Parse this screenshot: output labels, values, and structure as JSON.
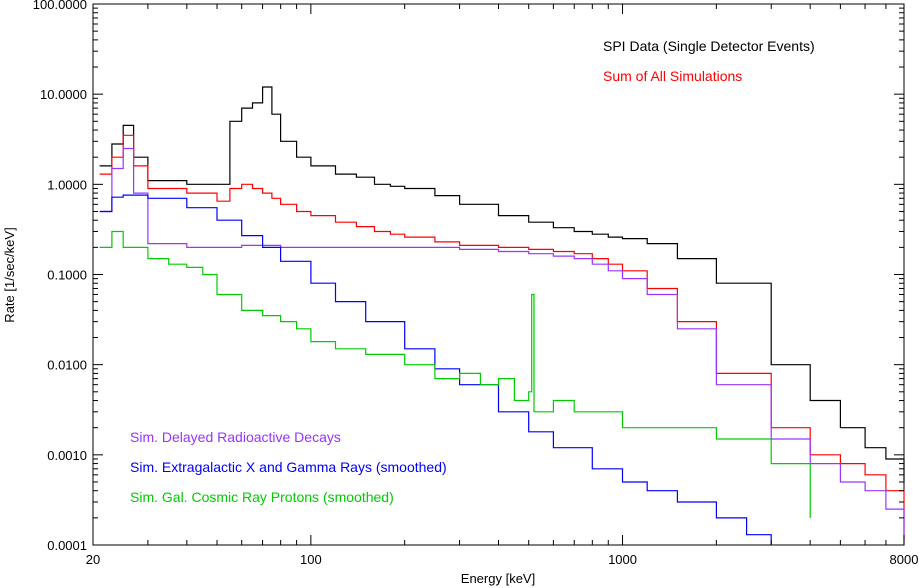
{
  "chart_data": {
    "type": "line",
    "xlabel": "Energy [keV]",
    "ylabel": "Rate [1/sec/keV]",
    "xscale": "log",
    "yscale": "log",
    "xlim": [
      20,
      8000
    ],
    "ylim": [
      0.0001,
      100
    ],
    "grid": false,
    "legend_placement": "top-right and bottom-left",
    "x_ticks": [
      {
        "value": 20,
        "label": "20"
      },
      {
        "value": 100,
        "label": "100"
      },
      {
        "value": 1000,
        "label": "1000"
      },
      {
        "value": 8000,
        "label": "8000"
      }
    ],
    "y_ticks": [
      {
        "value": 0.0001,
        "label": "0.0001"
      },
      {
        "value": 0.001,
        "label": "0.0010"
      },
      {
        "value": 0.01,
        "label": "0.0100"
      },
      {
        "value": 0.1,
        "label": "0.1000"
      },
      {
        "value": 1,
        "label": "1.0000"
      },
      {
        "value": 10,
        "label": "10.0000"
      },
      {
        "value": 100,
        "label": "100.0000"
      }
    ],
    "series": [
      {
        "name": "SPI Data (Single Detector Events)",
        "color": "#000000",
        "x": [
          21,
          23,
          25,
          27,
          30,
          40,
          50,
          55,
          60,
          65,
          70,
          75,
          80,
          90,
          100,
          120,
          140,
          160,
          180,
          200,
          250,
          300,
          400,
          500,
          600,
          700,
          800,
          900,
          1000,
          1200,
          1500,
          2000,
          3000,
          4000,
          5000,
          6000,
          7000,
          8000
        ],
        "y": [
          1.6,
          2.8,
          4.5,
          2.0,
          1.1,
          1.0,
          1.0,
          5.0,
          7.0,
          8.0,
          12.0,
          6.0,
          3.0,
          2.0,
          1.6,
          1.3,
          1.2,
          1.0,
          0.95,
          0.9,
          0.75,
          0.6,
          0.45,
          0.38,
          0.33,
          0.3,
          0.28,
          0.26,
          0.25,
          0.22,
          0.15,
          0.08,
          0.01,
          0.004,
          0.002,
          0.0012,
          0.0009,
          0.0005
        ]
      },
      {
        "name": "Sum of All Simulations",
        "color": "#ff0000",
        "x": [
          21,
          23,
          25,
          27,
          30,
          40,
          50,
          55,
          60,
          65,
          70,
          75,
          80,
          90,
          100,
          120,
          140,
          160,
          180,
          200,
          250,
          300,
          400,
          500,
          600,
          700,
          800,
          900,
          1000,
          1200,
          1500,
          2000,
          3000,
          4000,
          5000,
          6000,
          7000,
          8000
        ],
        "y": [
          1.3,
          2.0,
          3.5,
          1.6,
          0.9,
          0.8,
          0.65,
          0.9,
          1.0,
          0.9,
          0.8,
          0.7,
          0.6,
          0.5,
          0.45,
          0.38,
          0.34,
          0.3,
          0.28,
          0.26,
          0.23,
          0.21,
          0.2,
          0.19,
          0.18,
          0.17,
          0.15,
          0.13,
          0.11,
          0.07,
          0.03,
          0.008,
          0.002,
          0.001,
          0.0008,
          0.0006,
          0.0004,
          0.00012
        ]
      },
      {
        "name": "Sim. Delayed Radioactive Decays",
        "color": "#9933ff",
        "x": [
          21,
          23,
          25,
          27,
          30,
          40,
          50,
          55,
          60,
          65,
          70,
          75,
          80,
          90,
          100,
          120,
          140,
          160,
          180,
          200,
          250,
          300,
          400,
          500,
          600,
          700,
          800,
          900,
          1000,
          1200,
          1500,
          2000,
          3000,
          4000,
          5000,
          6000,
          7000,
          8000
        ],
        "y": [
          0.5,
          1.5,
          2.5,
          0.8,
          0.22,
          0.2,
          0.2,
          0.2,
          0.21,
          0.21,
          0.21,
          0.21,
          0.2,
          0.2,
          0.2,
          0.2,
          0.2,
          0.2,
          0.2,
          0.2,
          0.2,
          0.19,
          0.18,
          0.17,
          0.16,
          0.15,
          0.13,
          0.11,
          0.09,
          0.06,
          0.025,
          0.006,
          0.0015,
          0.0008,
          0.0005,
          0.0004,
          0.00025,
          0.0001
        ]
      },
      {
        "name": "Sim. Extragalactic X and Gamma Rays (smoothed)",
        "color": "#0000ff",
        "x": [
          21,
          23,
          25,
          27,
          30,
          40,
          50,
          60,
          70,
          80,
          100,
          120,
          150,
          200,
          250,
          300,
          400,
          500,
          600,
          800,
          1000,
          1200,
          1500,
          2000,
          2500,
          3000
        ],
        "y": [
          0.5,
          0.72,
          0.76,
          0.76,
          0.7,
          0.55,
          0.4,
          0.27,
          0.2,
          0.14,
          0.08,
          0.05,
          0.03,
          0.015,
          0.009,
          0.006,
          0.003,
          0.0018,
          0.0012,
          0.0007,
          0.0005,
          0.0004,
          0.0003,
          0.0002,
          0.00013,
          0.0001
        ]
      },
      {
        "name": "Sim. Gal. Cosmic Ray Protons (smoothed)",
        "color": "#00cc00",
        "x": [
          21,
          23,
          25,
          27,
          30,
          35,
          40,
          45,
          50,
          60,
          70,
          80,
          90,
          100,
          120,
          150,
          200,
          250,
          300,
          350,
          400,
          450,
          500,
          511,
          520,
          600,
          700,
          800,
          1000,
          1200,
          1500,
          2000,
          3000,
          4000
        ],
        "y": [
          0.2,
          0.3,
          0.2,
          0.2,
          0.15,
          0.13,
          0.12,
          0.1,
          0.06,
          0.04,
          0.035,
          0.03,
          0.025,
          0.018,
          0.015,
          0.013,
          0.01,
          0.007,
          0.008,
          0.006,
          0.007,
          0.004,
          0.005,
          0.06,
          0.003,
          0.004,
          0.003,
          0.003,
          0.002,
          0.002,
          0.002,
          0.0015,
          0.0008,
          0.0002
        ]
      }
    ]
  },
  "legend": {
    "top": [
      {
        "label": "SPI Data (Single Detector Events)",
        "color": "#000000"
      },
      {
        "label": "Sum of All Simulations",
        "color": "#ff0000"
      }
    ],
    "bottom": [
      {
        "label": "Sim. Delayed Radioactive Decays",
        "color": "#9933ff"
      },
      {
        "label": "Sim. Extragalactic X and Gamma Rays (smoothed)",
        "color": "#0000ff"
      },
      {
        "label": "Sim. Gal. Cosmic Ray Protons (smoothed)",
        "color": "#00cc00"
      }
    ]
  }
}
